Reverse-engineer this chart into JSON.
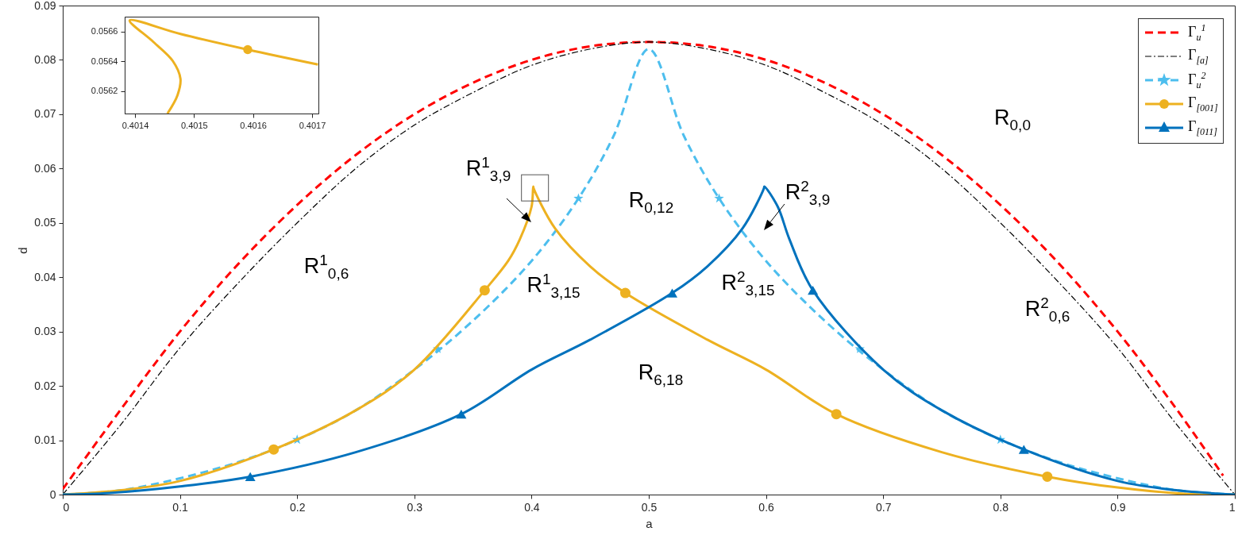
{
  "chart_data": [
    {
      "type": "line",
      "xlabel": "a",
      "ylabel": "d",
      "xlim": [
        0,
        1
      ],
      "ylim": [
        0,
        0.09
      ],
      "xticks": [
        0,
        0.1,
        0.2,
        0.3,
        0.4,
        0.5,
        0.6,
        0.7,
        0.8,
        0.9,
        1
      ],
      "yticks": [
        0,
        0.01,
        0.02,
        0.03,
        0.04,
        0.05,
        0.06,
        0.07,
        0.08,
        0.09
      ],
      "grid": false,
      "legend": "top right",
      "series": [
        {
          "name": "Γ$_{u}$$^{1}$",
          "color": "#ff0000",
          "line_style": "dashed",
          "x": [
            0,
            0.05,
            0.1,
            0.15,
            0.2,
            0.25,
            0.3,
            0.35,
            0.4,
            0.45,
            0.5,
            0.55,
            0.6,
            0.65,
            0.7,
            0.75,
            0.8,
            0.85,
            0.9,
            0.95,
            0.99
          ],
          "values": [
            0.001,
            0.0158,
            0.03,
            0.0425,
            0.0533,
            0.0625,
            0.07,
            0.0758,
            0.08,
            0.0825,
            0.0833,
            0.0825,
            0.08,
            0.0758,
            0.07,
            0.0625,
            0.0533,
            0.0425,
            0.03,
            0.0158,
            0.0035
          ]
        },
        {
          "name": "Γ$_{[a]}$",
          "color": "#000000",
          "line_style": "dashdot",
          "x": [
            0,
            0.05,
            0.1,
            0.15,
            0.2,
            0.25,
            0.3,
            0.35,
            0.4,
            0.45,
            0.5,
            0.55,
            0.6,
            0.65,
            0.7,
            0.75,
            0.8,
            0.85,
            0.9,
            0.95,
            1
          ],
          "values": [
            0,
            0.013,
            0.027,
            0.039,
            0.05,
            0.06,
            0.068,
            0.074,
            0.079,
            0.082,
            0.0833,
            0.082,
            0.079,
            0.074,
            0.068,
            0.06,
            0.05,
            0.039,
            0.027,
            0.013,
            0
          ]
        },
        {
          "name": "Γ$_{u}$$^{2}$",
          "color": "#4dbeee",
          "line_style": "dashed",
          "x": [
            0,
            0.05,
            0.1,
            0.15,
            0.2,
            0.25,
            0.3,
            0.35,
            0.4,
            0.44,
            0.47,
            0.5,
            0.53,
            0.56,
            0.6,
            0.65,
            0.7,
            0.75,
            0.8,
            0.85,
            0.9,
            0.95,
            1
          ],
          "values": [
            0,
            0.0008,
            0.003,
            0.006,
            0.0101,
            0.0155,
            0.023,
            0.032,
            0.043,
            0.0545,
            0.066,
            0.082,
            0.066,
            0.0545,
            0.043,
            0.032,
            0.023,
            0.0155,
            0.0101,
            0.006,
            0.003,
            0.0008,
            0
          ]
        },
        {
          "type": "scatter",
          "color": "#4dbeee",
          "marker": "star",
          "x": [
            0.2,
            0.32,
            0.44,
            0.56,
            0.68,
            0.8
          ],
          "values": [
            0.0101,
            0.0268,
            0.0545,
            0.0545,
            0.0268,
            0.0101
          ]
        },
        {
          "name": "Γ$_{[001]}$",
          "color": "#edb120",
          "line_style": "solid",
          "x": [
            0,
            0.05,
            0.1,
            0.18,
            0.25,
            0.3,
            0.36,
            0.38,
            0.39,
            0.4,
            0.4014,
            0.4017,
            0.42,
            0.45,
            0.48,
            0.55,
            0.6,
            0.66,
            0.75,
            0.84,
            0.9,
            0.96,
            1
          ],
          "values": [
            0,
            0.0008,
            0.0025,
            0.0083,
            0.0155,
            0.023,
            0.0376,
            0.043,
            0.047,
            0.053,
            0.0567,
            0.0564,
            0.049,
            0.042,
            0.0371,
            0.0285,
            0.023,
            0.0148,
            0.0078,
            0.0033,
            0.0013,
            0.0001,
            0
          ]
        },
        {
          "type": "scatter",
          "color": "#edb120",
          "marker": "circle",
          "x": [
            0.18,
            0.36,
            0.48,
            0.66,
            0.84
          ],
          "values": [
            0.0083,
            0.0376,
            0.0371,
            0.0148,
            0.0033
          ]
        },
        {
          "name": "Γ$_{[011]}$",
          "color": "#0072bd",
          "line_style": "solid",
          "x": [
            0,
            0.04,
            0.1,
            0.16,
            0.25,
            0.34,
            0.4,
            0.45,
            0.52,
            0.55,
            0.58,
            0.5983,
            0.5986,
            0.61,
            0.62,
            0.64,
            0.7,
            0.75,
            0.82,
            0.9,
            0.95,
            1
          ],
          "values": [
            0,
            0.0003,
            0.0015,
            0.0033,
            0.0078,
            0.0148,
            0.023,
            0.0285,
            0.0371,
            0.042,
            0.049,
            0.0564,
            0.0567,
            0.053,
            0.047,
            0.0376,
            0.023,
            0.0155,
            0.0083,
            0.0025,
            0.0008,
            0
          ]
        },
        {
          "type": "scatter",
          "color": "#0072bd",
          "marker": "triangle",
          "x": [
            0.16,
            0.34,
            0.52,
            0.64,
            0.82
          ],
          "values": [
            0.0033,
            0.0148,
            0.0371,
            0.0376,
            0.0083
          ]
        }
      ],
      "annotations": [
        "R$^{1}$$_{3,9}$",
        "R$^{2}$$_{3,9}$",
        "R$_{0,0}$",
        "R$_{0,12}$",
        "R$^{1}$$_{0,6}$",
        "R$^{1}$$_{3,15}$",
        "R$^{2}$$_{3,15}$",
        "R$^{2}$$_{0,6}$",
        "R$_{6,18}$"
      ]
    },
    {
      "type": "line",
      "xlim": [
        0.4013825,
        0.4017108
      ],
      "ylim": [
        0.05605,
        0.0567
      ],
      "xticks": [
        0.4014,
        0.4015,
        0.4016,
        0.4017
      ],
      "yticks": [
        0.0562,
        0.0564,
        0.0566
      ],
      "grid": false,
      "series": [
        {
          "color": "#edb120",
          "line_style": "solid",
          "x": [
            0.401455,
            0.401472,
            0.401477,
            0.401464,
            0.401431,
            0.401391,
            0.401477,
            0.401591,
            0.40171
          ],
          "values": [
            0.05605,
            0.056173,
            0.056283,
            0.056403,
            0.056531,
            0.056675,
            0.056584,
            0.056479,
            0.056379
          ]
        },
        {
          "type": "scatter",
          "color": "#edb120",
          "marker": "circle",
          "x": [
            0.401591
          ],
          "values": [
            0.056479
          ]
        }
      ]
    }
  ]
}
